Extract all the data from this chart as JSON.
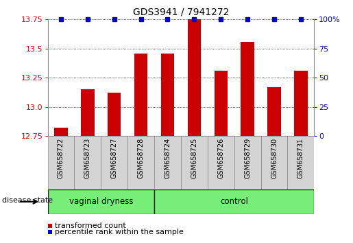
{
  "title": "GDS3941 / 7941272",
  "samples": [
    "GSM658722",
    "GSM658723",
    "GSM658727",
    "GSM658728",
    "GSM658724",
    "GSM658725",
    "GSM658726",
    "GSM658729",
    "GSM658730",
    "GSM658731"
  ],
  "red_values": [
    12.82,
    13.15,
    13.12,
    13.46,
    13.46,
    13.75,
    13.31,
    13.56,
    13.17,
    13.31
  ],
  "blue_values": [
    100,
    100,
    100,
    100,
    100,
    100,
    100,
    100,
    100,
    100
  ],
  "groups": [
    {
      "label": "vaginal dryness",
      "start": 0,
      "end": 4
    },
    {
      "label": "control",
      "start": 4,
      "end": 10
    }
  ],
  "bar_color": "#cc0000",
  "dot_color": "#0000cc",
  "ylim_left": [
    12.75,
    13.75
  ],
  "ylim_right": [
    0,
    100
  ],
  "yticks_left": [
    12.75,
    13.0,
    13.25,
    13.5,
    13.75
  ],
  "yticks_right": [
    0,
    25,
    50,
    75,
    100
  ],
  "ytick_labels_right": [
    "0",
    "25",
    "50",
    "75",
    "100%"
  ],
  "disease_state_label": "disease state",
  "legend_items": [
    {
      "color": "#cc0000",
      "label": "transformed count"
    },
    {
      "color": "#0000cc",
      "label": "percentile rank within the sample"
    }
  ],
  "bar_width": 0.5,
  "background_color": "#ffffff",
  "sample_box_color": "#d4d4d4",
  "group_fill_color": "#77ee77",
  "group_edge_color": "#222222",
  "grid_color": "#000000",
  "spine_color": "#888888"
}
